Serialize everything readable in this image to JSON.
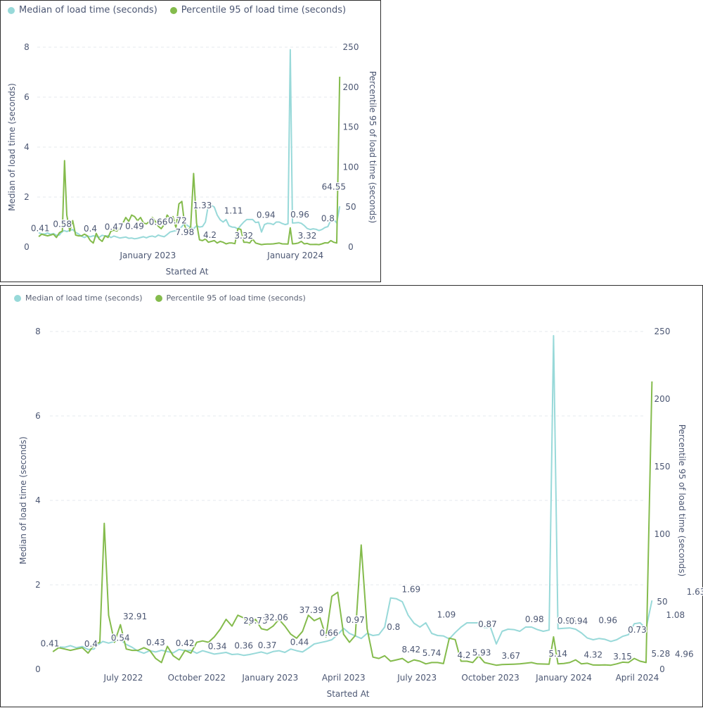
{
  "chart_data": [
    {
      "type": "line",
      "legend_position": "top-left",
      "grid": true,
      "xlabel": "Started At",
      "ylabel": "Median of load time (seconds)",
      "y2label": "Percentile 95 of load time (seconds)",
      "ylim": [
        0,
        8
      ],
      "y2lim": [
        0,
        250
      ],
      "yticks": [
        "0",
        "2",
        "4",
        "6",
        "8"
      ],
      "y2ticks": [
        "0",
        "50",
        "100",
        "150",
        "200",
        "250"
      ],
      "xtick_labels": [
        {
          "label": "January 2023",
          "x": 2023.0
        },
        {
          "label": "January 2024",
          "x": 2024.0
        }
      ],
      "xrange": [
        2022.25,
        2024.28
      ],
      "annotations_left": [
        {
          "x": 2022.27,
          "y": 0.41,
          "label": "0.41"
        },
        {
          "x": 2022.42,
          "y": 0.58,
          "label": "0.58"
        },
        {
          "x": 2022.61,
          "y": 0.4,
          "label": "0.4"
        },
        {
          "x": 2022.77,
          "y": 0.47,
          "label": "0.47"
        },
        {
          "x": 2022.91,
          "y": 0.49,
          "label": "0.49"
        },
        {
          "x": 2023.07,
          "y": 0.66,
          "label": "0.66"
        },
        {
          "x": 2023.2,
          "y": 0.72,
          "label": "0.72"
        },
        {
          "x": 2023.37,
          "y": 1.33,
          "label": "1.33"
        },
        {
          "x": 2023.58,
          "y": 1.11,
          "label": "1.11"
        },
        {
          "x": 2023.8,
          "y": 0.94,
          "label": "0.94"
        },
        {
          "x": 2024.03,
          "y": 0.96,
          "label": "0.96"
        },
        {
          "x": 2024.22,
          "y": 0.8,
          "label": "0.8"
        }
      ],
      "annotations_right": [
        {
          "x": 2023.25,
          "y": 7.98,
          "label": "7.98"
        },
        {
          "x": 2023.42,
          "y": 4.2,
          "label": "4.2"
        },
        {
          "x": 2023.65,
          "y": 3.32,
          "label": "3.32"
        },
        {
          "x": 2024.08,
          "y": 3.32,
          "label": "3.32"
        },
        {
          "x": 2024.26,
          "y": 64.55,
          "label": "64.55"
        }
      ]
    },
    {
      "type": "line",
      "legend_position": "top-left",
      "grid": true,
      "xlabel": "Started At",
      "ylabel": "Median of load time (seconds)",
      "y2label": "Percentile 95 of load time (seconds)",
      "ylim": [
        0,
        8
      ],
      "y2lim": [
        0,
        250
      ],
      "yticks": [
        "0",
        "2",
        "4",
        "6",
        "8"
      ],
      "y2ticks": [
        "0",
        "50",
        "100",
        "150",
        "200",
        "250"
      ],
      "xtick_labels": [
        {
          "label": "July 2022",
          "x": 2022.5
        },
        {
          "label": "October 2022",
          "x": 2022.75
        },
        {
          "label": "January 2023",
          "x": 2023.0
        },
        {
          "label": "April 2023",
          "x": 2023.25
        },
        {
          "label": "July 2023",
          "x": 2023.5
        },
        {
          "label": "October 2023",
          "x": 2023.75
        },
        {
          "label": "January 2024",
          "x": 2024.0
        },
        {
          "label": "April 2024",
          "x": 2024.25
        }
      ],
      "xrange": [
        2022.25,
        2024.28
      ],
      "annotations_left": [
        {
          "x": 2022.25,
          "y": 0.41,
          "label": "0.41"
        },
        {
          "x": 2022.39,
          "y": 0.4,
          "label": "0.4"
        },
        {
          "x": 2022.49,
          "y": 0.54,
          "label": "0.54"
        },
        {
          "x": 2022.61,
          "y": 0.43,
          "label": "0.43"
        },
        {
          "x": 2022.71,
          "y": 0.42,
          "label": "0.42"
        },
        {
          "x": 2022.82,
          "y": 0.34,
          "label": "0.34"
        },
        {
          "x": 2022.91,
          "y": 0.36,
          "label": "0.36"
        },
        {
          "x": 2022.99,
          "y": 0.37,
          "label": "0.37"
        },
        {
          "x": 2023.1,
          "y": 0.44,
          "label": "0.44"
        },
        {
          "x": 2023.2,
          "y": 0.66,
          "label": "0.66"
        },
        {
          "x": 2023.29,
          "y": 0.97,
          "label": "0.97"
        },
        {
          "x": 2023.42,
          "y": 0.8,
          "label": "0.8"
        },
        {
          "x": 2023.48,
          "y": 1.69,
          "label": "1.69"
        },
        {
          "x": 2023.6,
          "y": 1.09,
          "label": "1.09"
        },
        {
          "x": 2023.74,
          "y": 0.87,
          "label": "0.87"
        },
        {
          "x": 2023.9,
          "y": 0.98,
          "label": "0.98"
        },
        {
          "x": 2024.01,
          "y": 0.95,
          "label": "0.95"
        },
        {
          "x": 2024.05,
          "y": 0.94,
          "label": "0.94"
        },
        {
          "x": 2024.15,
          "y": 0.96,
          "label": "0.96"
        },
        {
          "x": 2024.25,
          "y": 0.73,
          "label": "0.73"
        },
        {
          "x": 2024.38,
          "y": 1.08,
          "label": "1.08"
        },
        {
          "x": 2024.45,
          "y": 1.63,
          "label": "1.63"
        }
      ],
      "annotations_right": [
        {
          "x": 2022.54,
          "y": 32.91,
          "label": "32.91"
        },
        {
          "x": 2022.95,
          "y": 29.73,
          "label": "29.73"
        },
        {
          "x": 2023.02,
          "y": 32.06,
          "label": "32.06"
        },
        {
          "x": 2023.14,
          "y": 37.39,
          "label": "37.39"
        },
        {
          "x": 2023.48,
          "y": 8.42,
          "label": "8.42"
        },
        {
          "x": 2023.55,
          "y": 5.74,
          "label": "5.74"
        },
        {
          "x": 2023.66,
          "y": 4.2,
          "label": "4.2"
        },
        {
          "x": 2023.72,
          "y": 5.93,
          "label": "5.93"
        },
        {
          "x": 2023.82,
          "y": 3.67,
          "label": "3.67"
        },
        {
          "x": 2023.98,
          "y": 5.14,
          "label": "5.14"
        },
        {
          "x": 2024.1,
          "y": 4.32,
          "label": "4.32"
        },
        {
          "x": 2024.2,
          "y": 3.15,
          "label": "3.15"
        },
        {
          "x": 2024.33,
          "y": 5.28,
          "label": "5.28"
        },
        {
          "x": 2024.41,
          "y": 4.96,
          "label": "4.96"
        }
      ]
    }
  ],
  "series": [
    {
      "name": "Median of load time (seconds)",
      "color": "#98d9d9",
      "axis": "left",
      "points": [
        [
          2022.26,
          0.57
        ],
        [
          2022.28,
          0.53
        ],
        [
          2022.3,
          0.52
        ],
        [
          2022.32,
          0.56
        ],
        [
          2022.34,
          0.51
        ],
        [
          2022.36,
          0.54
        ],
        [
          2022.38,
          0.47
        ],
        [
          2022.4,
          0.48
        ],
        [
          2022.41,
          0.56
        ],
        [
          2022.43,
          0.66
        ],
        [
          2022.45,
          0.62
        ],
        [
          2022.47,
          0.66
        ],
        [
          2022.49,
          0.7
        ],
        [
          2022.51,
          0.59
        ],
        [
          2022.53,
          0.52
        ],
        [
          2022.55,
          0.43
        ],
        [
          2022.57,
          0.38
        ],
        [
          2022.59,
          0.44
        ],
        [
          2022.61,
          0.41
        ],
        [
          2022.63,
          0.45
        ],
        [
          2022.65,
          0.42
        ],
        [
          2022.67,
          0.39
        ],
        [
          2022.69,
          0.47
        ],
        [
          2022.71,
          0.44
        ],
        [
          2022.73,
          0.45
        ],
        [
          2022.75,
          0.38
        ],
        [
          2022.77,
          0.44
        ],
        [
          2022.79,
          0.4
        ],
        [
          2022.81,
          0.36
        ],
        [
          2022.83,
          0.38
        ],
        [
          2022.85,
          0.4
        ],
        [
          2022.87,
          0.35
        ],
        [
          2022.89,
          0.36
        ],
        [
          2022.91,
          0.33
        ],
        [
          2022.93,
          0.35
        ],
        [
          2022.95,
          0.38
        ],
        [
          2022.97,
          0.41
        ],
        [
          2022.99,
          0.37
        ],
        [
          2023.01,
          0.42
        ],
        [
          2023.03,
          0.44
        ],
        [
          2023.05,
          0.4
        ],
        [
          2023.07,
          0.48
        ],
        [
          2023.09,
          0.44
        ],
        [
          2023.11,
          0.41
        ],
        [
          2023.13,
          0.5
        ],
        [
          2023.15,
          0.6
        ],
        [
          2023.17,
          0.63
        ],
        [
          2023.19,
          0.66
        ],
        [
          2023.21,
          0.7
        ],
        [
          2023.23,
          0.82
        ],
        [
          2023.25,
          0.97
        ],
        [
          2023.27,
          0.85
        ],
        [
          2023.29,
          0.79
        ],
        [
          2023.31,
          0.73
        ],
        [
          2023.33,
          0.85
        ],
        [
          2023.35,
          0.8
        ],
        [
          2023.37,
          0.82
        ],
        [
          2023.39,
          1.0
        ],
        [
          2023.41,
          1.69
        ],
        [
          2023.43,
          1.67
        ],
        [
          2023.45,
          1.6
        ],
        [
          2023.47,
          1.28
        ],
        [
          2023.49,
          1.09
        ],
        [
          2023.51,
          1.0
        ],
        [
          2023.53,
          1.1
        ],
        [
          2023.55,
          0.85
        ],
        [
          2023.57,
          0.8
        ],
        [
          2023.59,
          0.79
        ],
        [
          2023.61,
          0.72
        ],
        [
          2023.63,
          0.87
        ],
        [
          2023.65,
          1.0
        ],
        [
          2023.67,
          1.1
        ],
        [
          2023.69,
          1.1
        ],
        [
          2023.71,
          1.1
        ],
        [
          2023.73,
          0.98
        ],
        [
          2023.75,
          1.0
        ],
        [
          2023.77,
          0.6
        ],
        [
          2023.79,
          0.9
        ],
        [
          2023.81,
          0.95
        ],
        [
          2023.83,
          0.94
        ],
        [
          2023.85,
          0.9
        ],
        [
          2023.87,
          1.0
        ],
        [
          2023.89,
          1.0
        ],
        [
          2023.91,
          0.94
        ],
        [
          2023.93,
          0.9
        ],
        [
          2023.95,
          0.93
        ],
        [
          2023.965,
          7.9
        ],
        [
          2023.98,
          0.96
        ],
        [
          2024.0,
          0.97
        ],
        [
          2024.02,
          0.98
        ],
        [
          2024.04,
          0.95
        ],
        [
          2024.06,
          0.86
        ],
        [
          2024.08,
          0.74
        ],
        [
          2024.1,
          0.7
        ],
        [
          2024.12,
          0.73
        ],
        [
          2024.14,
          0.71
        ],
        [
          2024.16,
          0.66
        ],
        [
          2024.18,
          0.7
        ],
        [
          2024.2,
          0.78
        ],
        [
          2024.22,
          0.82
        ],
        [
          2024.24,
          1.08
        ],
        [
          2024.26,
          1.1
        ],
        [
          2024.28,
          0.96
        ],
        [
          2024.3,
          1.63
        ]
      ]
    },
    {
      "name": "Percentile 95 of load time (seconds)",
      "color": "#84bb4c",
      "axis": "right",
      "points": [
        [
          2022.26,
          13.0
        ],
        [
          2022.28,
          16.0
        ],
        [
          2022.3,
          15.0
        ],
        [
          2022.32,
          14.0
        ],
        [
          2022.34,
          15.0
        ],
        [
          2022.36,
          16.0
        ],
        [
          2022.38,
          12.0
        ],
        [
          2022.4,
          18.0
        ],
        [
          2022.42,
          20.0
        ],
        [
          2022.435,
          108.0
        ],
        [
          2022.45,
          40.0
        ],
        [
          2022.47,
          20.0
        ],
        [
          2022.49,
          33.0
        ],
        [
          2022.51,
          15.0
        ],
        [
          2022.53,
          14.0
        ],
        [
          2022.55,
          14.0
        ],
        [
          2022.57,
          16.0
        ],
        [
          2022.59,
          14.0
        ],
        [
          2022.61,
          8.0
        ],
        [
          2022.63,
          5.0
        ],
        [
          2022.65,
          17.0
        ],
        [
          2022.67,
          10.0
        ],
        [
          2022.69,
          7.0
        ],
        [
          2022.71,
          14.0
        ],
        [
          2022.73,
          12.0
        ],
        [
          2022.75,
          20.0
        ],
        [
          2022.77,
          21.0
        ],
        [
          2022.79,
          20.0
        ],
        [
          2022.81,
          24.0
        ],
        [
          2022.83,
          29.7
        ],
        [
          2022.85,
          37.0
        ],
        [
          2022.87,
          32.0
        ],
        [
          2022.89,
          40.0
        ],
        [
          2022.91,
          38.0
        ],
        [
          2022.93,
          33.0
        ],
        [
          2022.95,
          37.0
        ],
        [
          2022.97,
          30.0
        ],
        [
          2022.99,
          29.0
        ],
        [
          2023.01,
          32.0
        ],
        [
          2023.03,
          37.0
        ],
        [
          2023.05,
          32.0
        ],
        [
          2023.07,
          26.0
        ],
        [
          2023.09,
          23.0
        ],
        [
          2023.11,
          28.0
        ],
        [
          2023.13,
          40.0
        ],
        [
          2023.15,
          36.0
        ],
        [
          2023.17,
          38.0
        ],
        [
          2023.19,
          24.0
        ],
        [
          2023.21,
          54.0
        ],
        [
          2023.23,
          57.0
        ],
        [
          2023.25,
          26.0
        ],
        [
          2023.27,
          20.0
        ],
        [
          2023.29,
          25.0
        ],
        [
          2023.31,
          92.0
        ],
        [
          2023.33,
          30.0
        ],
        [
          2023.35,
          9.0
        ],
        [
          2023.37,
          8.0
        ],
        [
          2023.39,
          10.0
        ],
        [
          2023.41,
          6.0
        ],
        [
          2023.43,
          7.0
        ],
        [
          2023.45,
          8.0
        ],
        [
          2023.47,
          5.0
        ],
        [
          2023.49,
          7.0
        ],
        [
          2023.51,
          6.0
        ],
        [
          2023.53,
          4.0
        ],
        [
          2023.55,
          5.0
        ],
        [
          2023.57,
          5.0
        ],
        [
          2023.59,
          4.2
        ],
        [
          2023.61,
          23.0
        ],
        [
          2023.63,
          22.0
        ],
        [
          2023.65,
          6.0
        ],
        [
          2023.67,
          6.0
        ],
        [
          2023.69,
          5.0
        ],
        [
          2023.71,
          10.0
        ],
        [
          2023.73,
          5.0
        ],
        [
          2023.75,
          4.0
        ],
        [
          2023.77,
          3.0
        ],
        [
          2023.79,
          3.5
        ],
        [
          2023.81,
          3.67
        ],
        [
          2023.83,
          3.8
        ],
        [
          2023.85,
          4.0
        ],
        [
          2023.87,
          4.5
        ],
        [
          2023.89,
          5.0
        ],
        [
          2023.91,
          4.0
        ],
        [
          2023.93,
          3.9
        ],
        [
          2023.95,
          3.8
        ],
        [
          2023.965,
          24.0
        ],
        [
          2023.98,
          4.0
        ],
        [
          2024.0,
          4.3
        ],
        [
          2024.02,
          5.0
        ],
        [
          2024.04,
          7.0
        ],
        [
          2024.06,
          4.0
        ],
        [
          2024.08,
          4.5
        ],
        [
          2024.1,
          3.2
        ],
        [
          2024.12,
          3.15
        ],
        [
          2024.14,
          3.3
        ],
        [
          2024.16,
          3.0
        ],
        [
          2024.18,
          4.0
        ],
        [
          2024.2,
          5.28
        ],
        [
          2024.22,
          5.0
        ],
        [
          2024.24,
          8.0
        ],
        [
          2024.26,
          6.0
        ],
        [
          2024.28,
          5.0
        ],
        [
          2024.3,
          213.0
        ]
      ]
    }
  ]
}
